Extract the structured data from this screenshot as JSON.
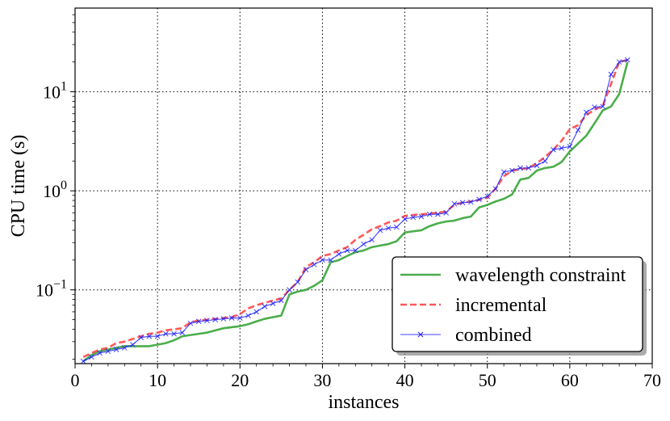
{
  "chart_data": {
    "type": "line",
    "title": "",
    "xlabel": "instances",
    "ylabel": "CPU time (s)",
    "xlim": [
      0,
      70
    ],
    "ylim": [
      0.018,
      70
    ],
    "yscale": "log",
    "grid": true,
    "legend_position": "lower-right",
    "x_ticks": [
      {
        "value": 0,
        "label": "0"
      },
      {
        "value": 10,
        "label": "10"
      },
      {
        "value": 20,
        "label": "20"
      },
      {
        "value": 30,
        "label": "30"
      },
      {
        "value": 40,
        "label": "40"
      },
      {
        "value": 50,
        "label": "50"
      },
      {
        "value": 60,
        "label": "60"
      },
      {
        "value": 70,
        "label": "70"
      }
    ],
    "y_ticks": [
      {
        "value": 0.1,
        "base": "10",
        "exp": "−1"
      },
      {
        "value": 1,
        "base": "10",
        "exp": "0"
      },
      {
        "value": 10,
        "base": "10",
        "exp": "1"
      }
    ],
    "series": [
      {
        "name": "wavelength constraint",
        "color": "#2ca02c",
        "style": "solid",
        "marker": "none",
        "x": [
          1,
          2,
          3,
          4,
          5,
          6,
          7,
          8,
          9,
          10,
          11,
          12,
          13,
          14,
          15,
          16,
          17,
          18,
          19,
          20,
          21,
          22,
          23,
          24,
          25,
          26,
          27,
          28,
          29,
          30,
          31,
          32,
          33,
          34,
          35,
          36,
          37,
          38,
          39,
          40,
          41,
          42,
          43,
          44,
          45,
          46,
          47,
          48,
          49,
          50,
          51,
          52,
          53,
          54,
          55,
          56,
          57,
          58,
          59,
          60,
          61,
          62,
          63,
          64,
          65,
          66,
          67
        ],
        "y": [
          0.019,
          0.022,
          0.024,
          0.025,
          0.026,
          0.027,
          0.027,
          0.027,
          0.027,
          0.028,
          0.029,
          0.031,
          0.034,
          0.035,
          0.036,
          0.037,
          0.039,
          0.041,
          0.042,
          0.043,
          0.045,
          0.048,
          0.051,
          0.053,
          0.055,
          0.09,
          0.096,
          0.1,
          0.11,
          0.125,
          0.19,
          0.2,
          0.22,
          0.24,
          0.25,
          0.27,
          0.28,
          0.29,
          0.31,
          0.38,
          0.39,
          0.4,
          0.44,
          0.47,
          0.49,
          0.5,
          0.53,
          0.55,
          0.68,
          0.72,
          0.78,
          0.83,
          0.92,
          1.3,
          1.35,
          1.6,
          1.7,
          1.75,
          1.95,
          2.5,
          3.0,
          3.6,
          4.8,
          6.5,
          7.1,
          9.5,
          20
        ]
      },
      {
        "name": "incremental",
        "color": "#ff3b3b",
        "style": "dashed",
        "marker": "none",
        "x": [
          1,
          2,
          3,
          4,
          5,
          6,
          7,
          8,
          9,
          10,
          11,
          12,
          13,
          14,
          15,
          16,
          17,
          18,
          19,
          20,
          21,
          22,
          23,
          24,
          25,
          26,
          27,
          28,
          29,
          30,
          31,
          32,
          33,
          34,
          35,
          36,
          37,
          38,
          39,
          40,
          41,
          42,
          43,
          44,
          45,
          46,
          47,
          48,
          49,
          50,
          51,
          52,
          53,
          54,
          55,
          56,
          57,
          58,
          59,
          60,
          61,
          62,
          63,
          64,
          65,
          66,
          67
        ],
        "y": [
          0.021,
          0.023,
          0.025,
          0.026,
          0.029,
          0.03,
          0.032,
          0.034,
          0.036,
          0.037,
          0.039,
          0.04,
          0.041,
          0.047,
          0.049,
          0.05,
          0.051,
          0.052,
          0.053,
          0.057,
          0.065,
          0.07,
          0.074,
          0.078,
          0.082,
          0.1,
          0.12,
          0.17,
          0.19,
          0.22,
          0.23,
          0.25,
          0.27,
          0.32,
          0.36,
          0.41,
          0.44,
          0.48,
          0.5,
          0.56,
          0.57,
          0.58,
          0.59,
          0.6,
          0.62,
          0.72,
          0.76,
          0.78,
          0.81,
          0.85,
          1.05,
          1.4,
          1.6,
          1.65,
          1.7,
          1.9,
          2.2,
          2.6,
          3.2,
          4.2,
          4.6,
          5.8,
          6.6,
          7.2,
          12,
          20,
          21
        ]
      },
      {
        "name": "combined",
        "color": "#1f1fff",
        "style": "solid",
        "marker": "x",
        "x": [
          1,
          2,
          3,
          4,
          5,
          6,
          7,
          8,
          9,
          10,
          11,
          12,
          13,
          14,
          15,
          16,
          17,
          18,
          19,
          20,
          21,
          22,
          23,
          24,
          25,
          26,
          27,
          28,
          29,
          30,
          31,
          32,
          33,
          34,
          35,
          36,
          37,
          38,
          39,
          40,
          41,
          42,
          43,
          44,
          45,
          46,
          47,
          48,
          49,
          50,
          51,
          52,
          53,
          54,
          55,
          56,
          57,
          58,
          59,
          60,
          61,
          62,
          63,
          64,
          65,
          66,
          67
        ],
        "y": [
          0.019,
          0.021,
          0.023,
          0.024,
          0.025,
          0.026,
          0.028,
          0.033,
          0.034,
          0.034,
          0.036,
          0.036,
          0.037,
          0.046,
          0.048,
          0.049,
          0.05,
          0.051,
          0.052,
          0.052,
          0.055,
          0.06,
          0.068,
          0.073,
          0.078,
          0.1,
          0.12,
          0.16,
          0.18,
          0.2,
          0.2,
          0.23,
          0.25,
          0.25,
          0.29,
          0.32,
          0.4,
          0.42,
          0.43,
          0.52,
          0.54,
          0.55,
          0.58,
          0.58,
          0.6,
          0.74,
          0.76,
          0.77,
          0.82,
          0.88,
          1.05,
          1.55,
          1.6,
          1.7,
          1.7,
          1.8,
          2.0,
          2.6,
          2.7,
          2.8,
          4.1,
          6.2,
          7.0,
          7.1,
          15,
          20,
          21
        ]
      }
    ]
  }
}
